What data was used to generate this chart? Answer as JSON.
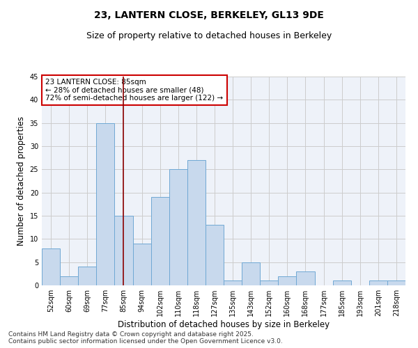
{
  "title1": "23, LANTERN CLOSE, BERKELEY, GL13 9DE",
  "title2": "Size of property relative to detached houses in Berkeley",
  "xlabel": "Distribution of detached houses by size in Berkeley",
  "ylabel": "Number of detached properties",
  "categories": [
    "52sqm",
    "60sqm",
    "69sqm",
    "77sqm",
    "85sqm",
    "94sqm",
    "102sqm",
    "110sqm",
    "118sqm",
    "127sqm",
    "135sqm",
    "143sqm",
    "152sqm",
    "160sqm",
    "168sqm",
    "177sqm",
    "185sqm",
    "193sqm",
    "201sqm",
    "218sqm"
  ],
  "values": [
    8,
    2,
    4,
    35,
    15,
    9,
    19,
    25,
    27,
    13,
    1,
    5,
    1,
    2,
    3,
    0,
    1,
    0,
    1,
    1
  ],
  "bar_color": "#c8d9ed",
  "bar_edge_color": "#6fa8d4",
  "highlight_index": 4,
  "vline_color": "#8b0000",
  "annotation_text": "23 LANTERN CLOSE: 85sqm\n← 28% of detached houses are smaller (48)\n72% of semi-detached houses are larger (122) →",
  "annotation_box_color": "#ffffff",
  "annotation_box_edge": "#cc0000",
  "ylim": [
    0,
    45
  ],
  "yticks": [
    0,
    5,
    10,
    15,
    20,
    25,
    30,
    35,
    40,
    45
  ],
  "grid_color": "#cccccc",
  "background_color": "#eef2f9",
  "footer_line1": "Contains HM Land Registry data © Crown copyright and database right 2025.",
  "footer_line2": "Contains public sector information licensed under the Open Government Licence v3.0.",
  "title1_fontsize": 10,
  "title2_fontsize": 9,
  "tick_fontsize": 7,
  "label_fontsize": 8.5,
  "annotation_fontsize": 7.5,
  "footer_fontsize": 6.5
}
